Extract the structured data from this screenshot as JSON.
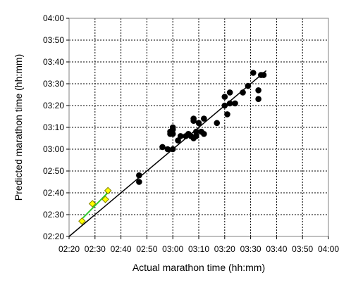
{
  "chart_data": {
    "type": "scatter",
    "title": "",
    "xlabel": "Actual marathon time (hh:mm)",
    "ylabel": "Predicted marathon time (hh:mm)",
    "xlim": [
      "02:20",
      "04:00"
    ],
    "ylim": [
      "02:20",
      "04:00"
    ],
    "x_ticks": [
      "02:20",
      "02:30",
      "02:40",
      "02:50",
      "03:00",
      "03:10",
      "03:20",
      "03:30",
      "03:40",
      "03:50",
      "04:00"
    ],
    "y_ticks": [
      "02:20",
      "02:30",
      "02:40",
      "02:50",
      "03:00",
      "03:10",
      "03:20",
      "03:30",
      "03:40",
      "03:50",
      "04:00"
    ],
    "grid": true,
    "legend": "none",
    "series": [
      {
        "marker": "circle",
        "color": "#000000",
        "points": [
          {
            "x": "02:47",
            "y": "02:48"
          },
          {
            "x": "02:47",
            "y": "02:45"
          },
          {
            "x": "02:56",
            "y": "03:01"
          },
          {
            "x": "02:58",
            "y": "03:00"
          },
          {
            "x": "02:59",
            "y": "03:07"
          },
          {
            "x": "02:59",
            "y": "03:08"
          },
          {
            "x": "03:00",
            "y": "03:07"
          },
          {
            "x": "03:00",
            "y": "03:10"
          },
          {
            "x": "03:00",
            "y": "03:09"
          },
          {
            "x": "03:00",
            "y": "03:00"
          },
          {
            "x": "03:02",
            "y": "03:04"
          },
          {
            "x": "03:03",
            "y": "03:06"
          },
          {
            "x": "03:05",
            "y": "03:06"
          },
          {
            "x": "03:06",
            "y": "03:07"
          },
          {
            "x": "03:07",
            "y": "03:06"
          },
          {
            "x": "03:08",
            "y": "03:14"
          },
          {
            "x": "03:08",
            "y": "03:13"
          },
          {
            "x": "03:08",
            "y": "03:05"
          },
          {
            "x": "03:09",
            "y": "03:08"
          },
          {
            "x": "03:09",
            "y": "03:06"
          },
          {
            "x": "03:10",
            "y": "03:12"
          },
          {
            "x": "03:11",
            "y": "03:08"
          },
          {
            "x": "03:12",
            "y": "03:14"
          },
          {
            "x": "03:12",
            "y": "03:07"
          },
          {
            "x": "03:17",
            "y": "03:12"
          },
          {
            "x": "03:20",
            "y": "03:20"
          },
          {
            "x": "03:20",
            "y": "03:24"
          },
          {
            "x": "03:21",
            "y": "03:16"
          },
          {
            "x": "03:22",
            "y": "03:21"
          },
          {
            "x": "03:22",
            "y": "03:26"
          },
          {
            "x": "03:24",
            "y": "03:21"
          },
          {
            "x": "03:27",
            "y": "03:26"
          },
          {
            "x": "03:29",
            "y": "03:29"
          },
          {
            "x": "03:31",
            "y": "03:35"
          },
          {
            "x": "03:33",
            "y": "03:27"
          },
          {
            "x": "03:33",
            "y": "03:23"
          },
          {
            "x": "03:34",
            "y": "03:34"
          },
          {
            "x": "03:35",
            "y": "03:34"
          }
        ]
      },
      {
        "marker": "diamond",
        "color": "#ffff00",
        "outline": "#808000",
        "trendline_color": "#33cc33",
        "points": [
          {
            "x": "02:25",
            "y": "02:27"
          },
          {
            "x": "02:29",
            "y": "02:35"
          },
          {
            "x": "02:34",
            "y": "02:37"
          },
          {
            "x": "02:35",
            "y": "02:41"
          }
        ]
      }
    ],
    "reference_line": {
      "from": {
        "x": "02:20",
        "y": "02:20"
      },
      "to": {
        "x": "03:36",
        "y": "03:36"
      },
      "color": "#000000"
    }
  }
}
